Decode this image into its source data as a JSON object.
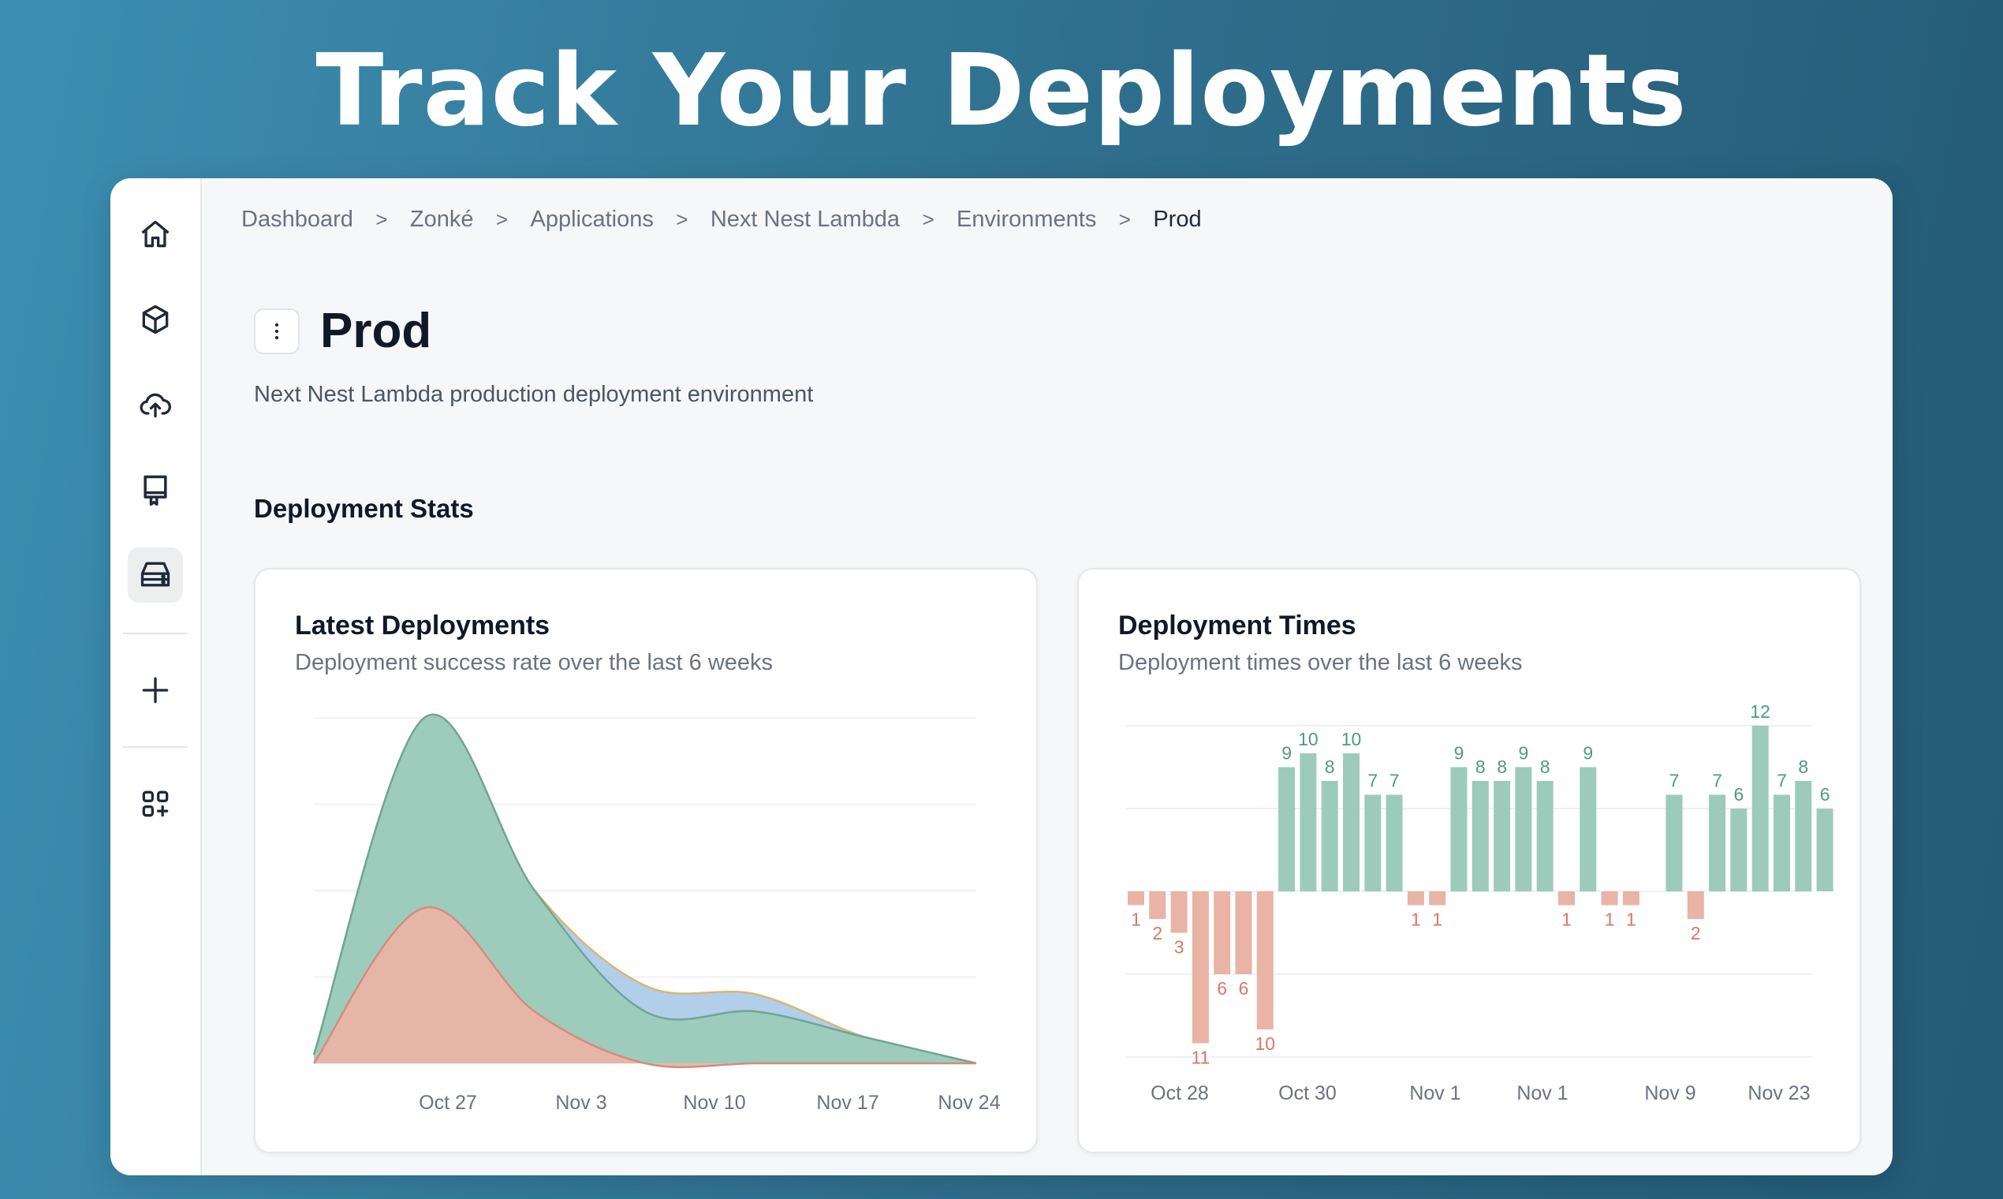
{
  "hero": {
    "title": "Track Your Deployments"
  },
  "sidebar": {
    "items": [
      {
        "icon": "home-icon"
      },
      {
        "icon": "box-icon"
      },
      {
        "icon": "cloud-upload-icon"
      },
      {
        "icon": "repo-icon"
      },
      {
        "icon": "server-icon",
        "active": true
      },
      {
        "icon": "plus-icon"
      },
      {
        "icon": "apps-add-icon"
      }
    ]
  },
  "breadcrumb": {
    "items": [
      "Dashboard",
      "Zonké",
      "Applications",
      "Next Nest Lambda",
      "Environments",
      "Prod"
    ],
    "separator": ">"
  },
  "page": {
    "title": "Prod",
    "description": "Next Nest Lambda production deployment environment",
    "section_title": "Deployment Stats"
  },
  "cards": {
    "latest": {
      "title": "Latest Deployments",
      "subtitle": "Deployment success rate over the last 6 weeks"
    },
    "times": {
      "title": "Deployment Times",
      "subtitle": "Deployment times over the last 6 weeks"
    }
  },
  "colors": {
    "success": "#9ccbbb",
    "failure": "#e9b3a6",
    "pending": "#a9c9e8",
    "success_line": "#6fa596",
    "failure_line": "#d48c7c",
    "success_label": "#4f9a85",
    "failure_label": "#d97863"
  },
  "chart_data": [
    {
      "type": "area",
      "title": "Latest Deployments",
      "x_ticks": [
        "Oct 27",
        "Nov 3",
        "Nov 10",
        "Nov 17",
        "Nov 24"
      ],
      "ylim": [
        0,
        20
      ],
      "grid": true,
      "series": [
        {
          "values": [
            0.5,
            20,
            10,
            4.5,
            4,
            1.5,
            0
          ]
        },
        {
          "values": [
            0.5,
            20,
            10,
            3,
            3,
            1.5,
            0
          ]
        },
        {
          "values": [
            0,
            9,
            3,
            0,
            0,
            0,
            0
          ]
        }
      ]
    },
    {
      "type": "bar",
      "title": "Deployment Times",
      "x_ticks": [
        "Oct 28",
        "Oct 30",
        "Nov 1",
        "Nov 1",
        "Nov 9",
        "Nov 23"
      ],
      "ylim": [
        -12,
        12
      ],
      "grid": true,
      "values": [
        -1,
        -2,
        -3,
        -11,
        -6,
        -6,
        -10,
        9,
        10,
        8,
        10,
        7,
        7,
        -1,
        -1,
        9,
        8,
        8,
        9,
        8,
        -1,
        9,
        -1,
        -1,
        0,
        7,
        -2,
        7,
        6,
        12,
        7,
        8,
        6
      ]
    }
  ]
}
